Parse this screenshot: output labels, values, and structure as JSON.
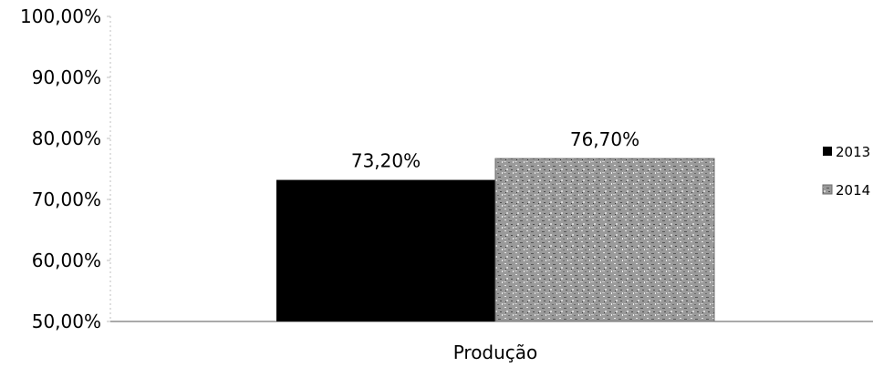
{
  "chart_data": {
    "type": "bar",
    "categories": [
      "Produção"
    ],
    "series": [
      {
        "name": "2013",
        "values": [
          73.2
        ],
        "value_labels": [
          "73,20%"
        ],
        "color": "#000000",
        "pattern": "solid"
      },
      {
        "name": "2014",
        "values": [
          76.7
        ],
        "value_labels": [
          "76,70%"
        ],
        "color": "#9a9a9a",
        "pattern": "speckled"
      }
    ],
    "title": "",
    "xlabel": "",
    "ylabel": "",
    "ylim": [
      50,
      100
    ],
    "yticks": [
      50,
      60,
      70,
      80,
      90,
      100
    ],
    "ytick_labels": [
      "50,00%",
      "60,00%",
      "70,00%",
      "80,00%",
      "90,00%",
      "100,00%"
    ],
    "grid": false,
    "legend_position": "right"
  }
}
